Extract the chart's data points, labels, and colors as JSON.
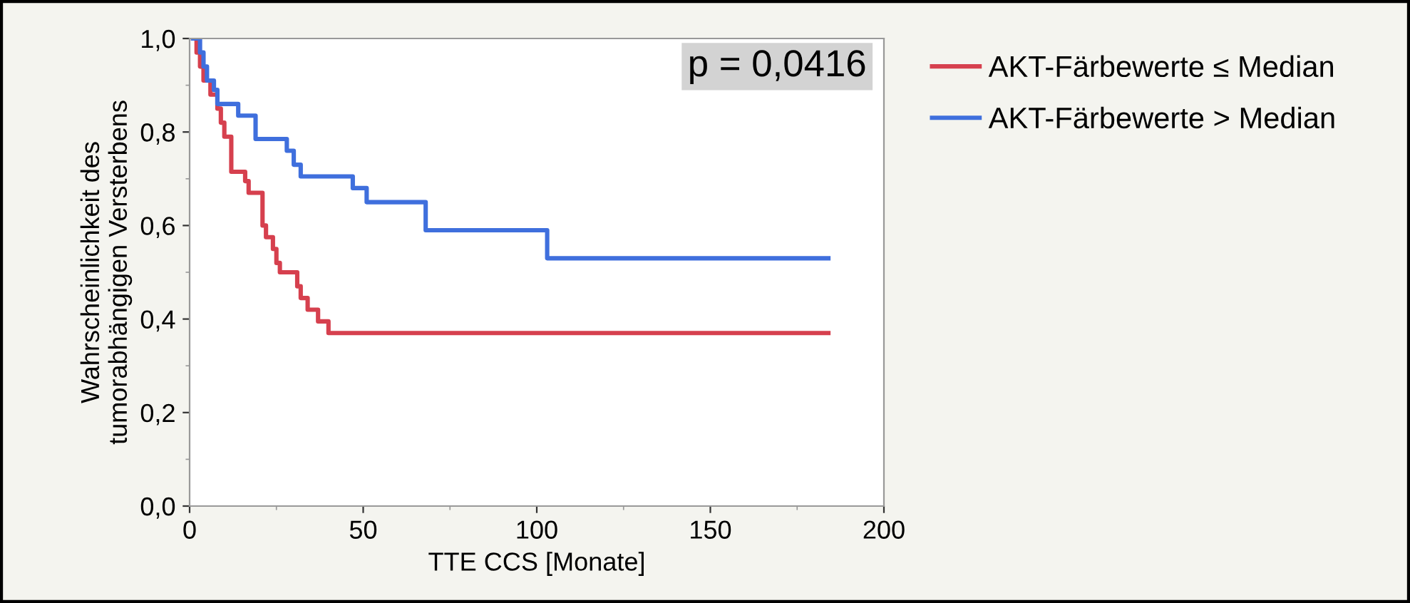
{
  "chart_data": {
    "type": "step",
    "xlabel": "TTE CCS [Monate]",
    "ylabel": "Wahrscheinlichkeit des\ntumorabhängigen Versterbens",
    "xlim": [
      0,
      200
    ],
    "xticks": [
      0,
      50,
      100,
      150,
      200
    ],
    "ylim": [
      0,
      1
    ],
    "yticks": [
      {
        "value": 0,
        "label": "0,0"
      },
      {
        "value": 0.2,
        "label": "0,2"
      },
      {
        "value": 0.4,
        "label": "0,4"
      },
      {
        "value": 0.6,
        "label": "0,6"
      },
      {
        "value": 0.8,
        "label": "0,8"
      },
      {
        "value": 1,
        "label": "1,0"
      }
    ],
    "grid": false,
    "legend": "top right",
    "annotations": [
      "p = 0,0416"
    ],
    "series": [
      {
        "name": "AKT-Färbewerte ≤ Median",
        "color": "#d6404e",
        "x": [
          1,
          2,
          3,
          4,
          6,
          8,
          9,
          10,
          12,
          16,
          17,
          21,
          22,
          24,
          25,
          26,
          31,
          32,
          34,
          37,
          40,
          184
        ],
        "values": [
          1.0,
          0.97,
          0.94,
          0.91,
          0.88,
          0.85,
          0.82,
          0.79,
          0.715,
          0.695,
          0.67,
          0.6,
          0.575,
          0.55,
          0.52,
          0.5,
          0.47,
          0.445,
          0.42,
          0.395,
          0.37,
          0.37
        ]
      },
      {
        "name": "AKT-Färbewerte > Median",
        "color": "#3f6fdd",
        "x": [
          1,
          3,
          4,
          5,
          7,
          8,
          14,
          19,
          28,
          30,
          32,
          47,
          51,
          68,
          103,
          184
        ],
        "values": [
          1.0,
          0.97,
          0.94,
          0.91,
          0.89,
          0.86,
          0.835,
          0.785,
          0.76,
          0.73,
          0.705,
          0.68,
          0.65,
          0.59,
          0.53,
          0.53
        ]
      }
    ]
  }
}
